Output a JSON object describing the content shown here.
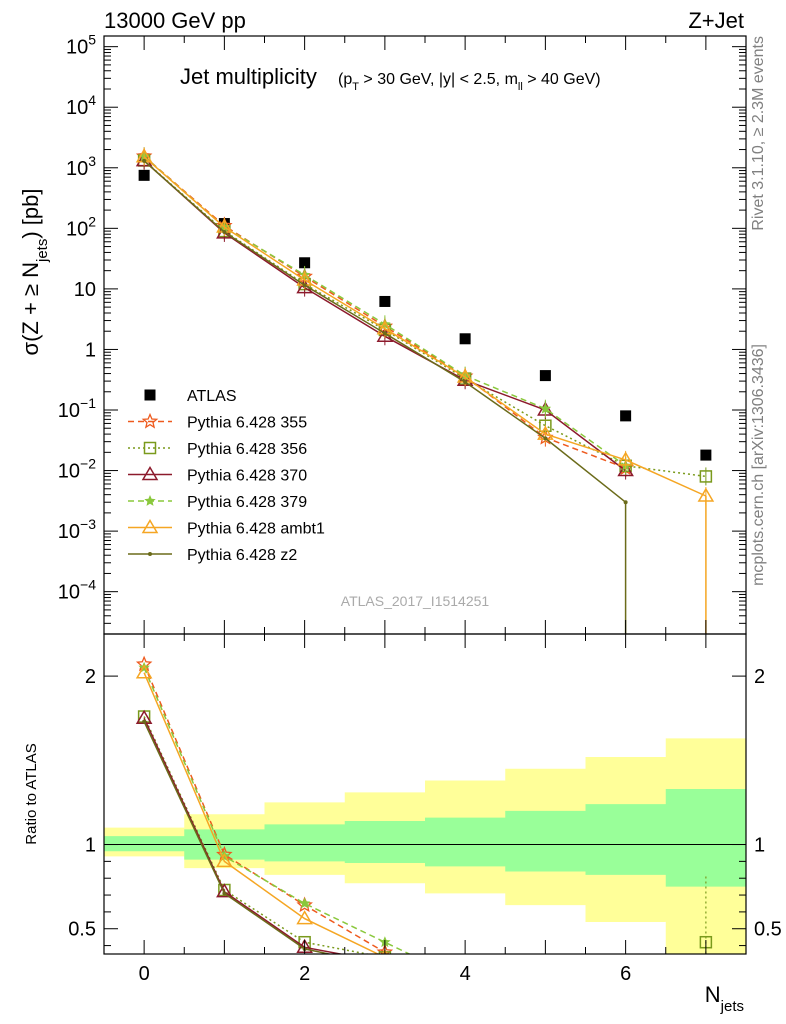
{
  "header": {
    "left": "13000 GeV pp",
    "right": "Z+Jet"
  },
  "side": {
    "rivet": "Rivet 3.1.10, ≥ 2.3M events",
    "mcplots": "mcplots.cern.ch [arXiv:1306.3436]"
  },
  "analysis_id": "ATLAS_2017_I1514251",
  "chart_data": [
    {
      "type": "line",
      "title": "Jet multiplicity",
      "subtitle": "(p_T > 30 GeV, |y| < 2.5, m_ll > 40 GeV)",
      "xlabel": "N_jets",
      "ylabel": "σ(Z + ≥ N_jets) [pb]",
      "yscale": "log",
      "ylim": [
        2e-05,
        150000
      ],
      "xlim": [
        -0.5,
        7.5
      ],
      "y_tick_labels": [
        "10^-4",
        "10^-3",
        "10^-2",
        "10^-1",
        "1",
        "10",
        "10^2",
        "10^3",
        "10^4",
        "10^5"
      ],
      "legend_position": "left",
      "x": [
        0,
        1,
        2,
        3,
        4,
        5,
        6,
        7
      ],
      "series": [
        {
          "name": "ATLAS",
          "color": "#000000",
          "marker": "square",
          "values": [
            750,
            120,
            27,
            6.2,
            1.5,
            0.37,
            0.08,
            0.018
          ]
        },
        {
          "name": "Pythia 6.428 355",
          "color": "#ee5a1e",
          "marker": "star-open",
          "dash": "dashed",
          "values": [
            1550,
            110,
            16,
            2.4,
            0.36,
            0.035,
            0.011,
            null
          ]
        },
        {
          "name": "Pythia 6.428 356",
          "color": "#7a9a1c",
          "marker": "square-open",
          "dash": "dotted",
          "values": [
            1320,
            90,
            12,
            2.1,
            0.33,
            0.055,
            0.012,
            0.008
          ]
        },
        {
          "name": "Pythia 6.428 370",
          "color": "#8c1a2c",
          "marker": "triangle-open",
          "dash": "solid",
          "values": [
            1310,
            84,
            10.5,
            1.65,
            0.31,
            0.1,
            0.01,
            null
          ]
        },
        {
          "name": "Pythia 6.428 379",
          "color": "#8ac83c",
          "marker": "star",
          "dash": "dashed",
          "values": [
            1540,
            105,
            17,
            2.6,
            0.37,
            0.105,
            0.012,
            null
          ]
        },
        {
          "name": "Pythia 6.428 ambt1",
          "color": "#f5a623",
          "marker": "triangle-open",
          "dash": "solid",
          "values": [
            1520,
            105,
            14,
            2.2,
            0.35,
            0.04,
            0.015,
            0.0038
          ]
        },
        {
          "name": "Pythia 6.428 z2",
          "color": "#6b6b1a",
          "marker": "dot",
          "dash": "solid",
          "values": [
            1300,
            87,
            11.5,
            1.85,
            0.29,
            0.034,
            0.003,
            null
          ]
        }
      ]
    },
    {
      "type": "line",
      "title": "",
      "xlabel": "N_jets",
      "ylabel": "Ratio to ATLAS",
      "ylim": [
        0.35,
        2.25
      ],
      "xlim": [
        -0.5,
        7.5
      ],
      "y_tick_labels": [
        "0.5",
        "1",
        "2"
      ],
      "x_tick_labels": [
        "0",
        "2",
        "4",
        "6"
      ],
      "x": [
        0,
        1,
        2,
        3,
        4,
        5,
        6,
        7
      ],
      "bands": {
        "inner": {
          "color": "#99ff99",
          "lower": [
            0.96,
            0.91,
            0.9,
            0.89,
            0.87,
            0.84,
            0.82,
            0.75
          ],
          "upper": [
            1.05,
            1.09,
            1.12,
            1.14,
            1.16,
            1.2,
            1.24,
            1.33
          ]
        },
        "outer": {
          "color": "#ffff99",
          "lower": [
            0.93,
            0.86,
            0.82,
            0.77,
            0.71,
            0.64,
            0.54,
            0.35
          ],
          "upper": [
            1.1,
            1.18,
            1.25,
            1.31,
            1.38,
            1.45,
            1.52,
            1.63
          ]
        }
      },
      "series": [
        {
          "name": "Pythia 6.428 355",
          "values": [
            2.07,
            0.94,
            0.64,
            0.36,
            null,
            null,
            null,
            null
          ]
        },
        {
          "name": "Pythia 6.428 356",
          "values": [
            1.76,
            0.73,
            0.42,
            0.33,
            null,
            null,
            null,
            0.42
          ]
        },
        {
          "name": "Pythia 6.428 370",
          "values": [
            1.75,
            0.72,
            0.39,
            0.3,
            null,
            null,
            null,
            null
          ]
        },
        {
          "name": "Pythia 6.428 379",
          "values": [
            2.05,
            0.93,
            0.65,
            0.42,
            null,
            null,
            null,
            null
          ]
        },
        {
          "name": "Pythia 6.428 ambt1",
          "values": [
            2.02,
            0.9,
            0.56,
            0.33,
            null,
            null,
            null,
            null
          ]
        },
        {
          "name": "Pythia 6.428 z2",
          "values": [
            1.73,
            0.71,
            0.38,
            0.28,
            null,
            null,
            null,
            null
          ]
        }
      ]
    }
  ]
}
